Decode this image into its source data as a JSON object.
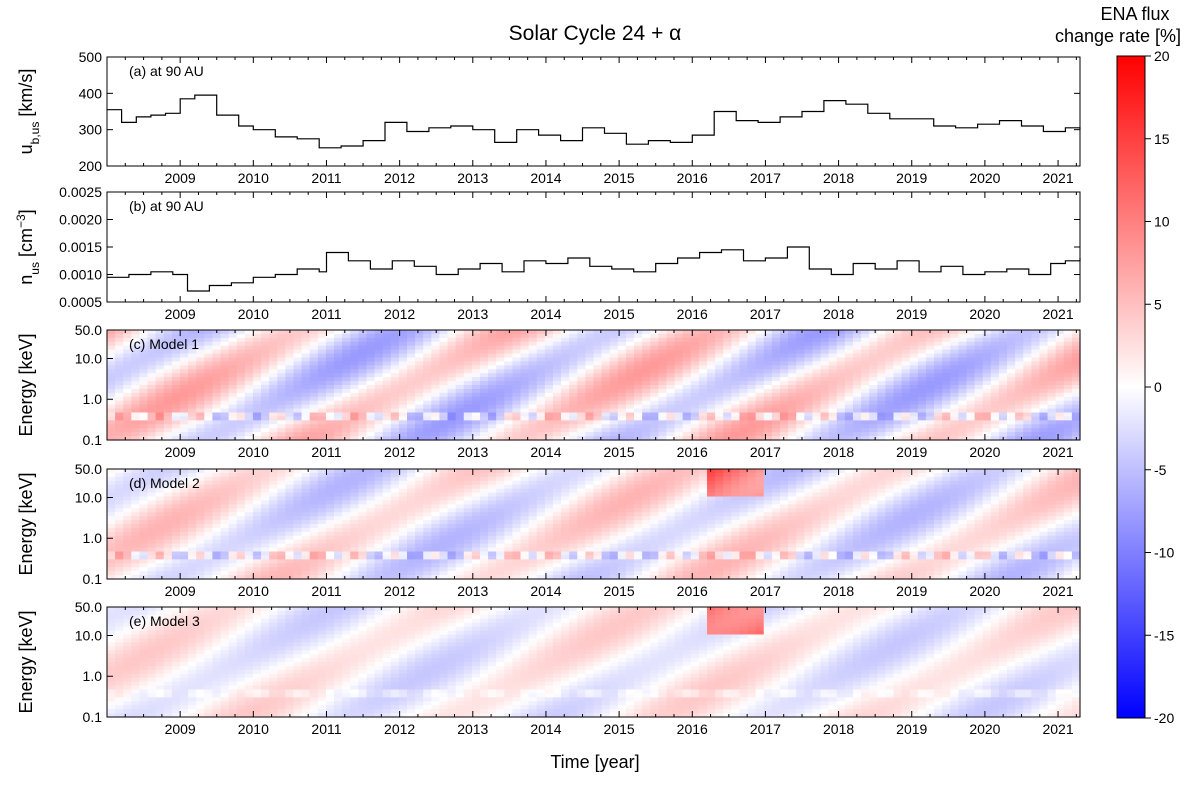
{
  "figure": {
    "title": "Solar Cycle 24 + α",
    "xlabel": "Time [year]"
  },
  "colorbar": {
    "title_line1": "ENA flux",
    "title_line2": "change rate [%]",
    "range": [
      -20,
      20
    ],
    "ticks": [
      "20",
      "15",
      "10",
      "5",
      "0",
      "-5",
      "-10",
      "-15",
      "-20"
    ],
    "colors": {
      "max": "#ff0000",
      "mid": "#ffffff",
      "min": "#0000ff"
    }
  },
  "x_ticks": [
    "2009",
    "2010",
    "2011",
    "2012",
    "2013",
    "2014",
    "2015",
    "2016",
    "2017",
    "2018",
    "2019",
    "2020",
    "2021"
  ],
  "chart_data": [
    {
      "type": "line",
      "panel_label": "(a) at 90 AU",
      "ylabel": "u_b,us [km/s]",
      "ylabel_main": "u",
      "ylabel_sub": "b,us",
      "ylabel_unit": " [km/s]",
      "xlim": [
        2008.0,
        2021.3
      ],
      "ylim": [
        200,
        500
      ],
      "yticks": [
        "500",
        "400",
        "300",
        "200"
      ],
      "x": [
        2008.0,
        2008.2,
        2008.4,
        2008.6,
        2008.8,
        2009.0,
        2009.2,
        2009.5,
        2009.8,
        2010.0,
        2010.3,
        2010.6,
        2010.9,
        2011.2,
        2011.5,
        2011.8,
        2012.1,
        2012.4,
        2012.7,
        2013.0,
        2013.3,
        2013.6,
        2013.9,
        2014.2,
        2014.5,
        2014.8,
        2015.1,
        2015.4,
        2015.7,
        2016.0,
        2016.3,
        2016.6,
        2016.9,
        2017.2,
        2017.5,
        2017.8,
        2018.1,
        2018.4,
        2018.7,
        2019.0,
        2019.3,
        2019.6,
        2019.9,
        2020.2,
        2020.5,
        2020.8,
        2021.1,
        2021.3
      ],
      "y": [
        355,
        320,
        335,
        340,
        345,
        385,
        395,
        340,
        310,
        300,
        280,
        275,
        250,
        255,
        270,
        320,
        295,
        305,
        310,
        300,
        265,
        300,
        285,
        270,
        305,
        290,
        260,
        270,
        265,
        285,
        350,
        325,
        320,
        335,
        350,
        380,
        370,
        345,
        330,
        330,
        310,
        305,
        315,
        325,
        310,
        295,
        305,
        300
      ]
    },
    {
      "type": "line",
      "panel_label": "(b) at 90 AU",
      "ylabel": "n_us [cm^-3]",
      "ylabel_main": "n",
      "ylabel_sub": "us",
      "ylabel_unit_pre": " [cm",
      "ylabel_unit_sup": "−3",
      "ylabel_unit_post": "]",
      "xlim": [
        2008.0,
        2021.3
      ],
      "ylim": [
        0.0005,
        0.0025
      ],
      "yticks": [
        "0.0025",
        "0.0020",
        "0.0015",
        "0.0010",
        "0.0005"
      ],
      "x": [
        2008.0,
        2008.3,
        2008.6,
        2008.9,
        2009.1,
        2009.4,
        2009.7,
        2010.0,
        2010.3,
        2010.6,
        2010.9,
        2011.0,
        2011.3,
        2011.6,
        2011.9,
        2012.2,
        2012.5,
        2012.8,
        2013.1,
        2013.4,
        2013.7,
        2014.0,
        2014.3,
        2014.6,
        2014.9,
        2015.2,
        2015.5,
        2015.8,
        2016.1,
        2016.4,
        2016.7,
        2017.0,
        2017.3,
        2017.6,
        2017.9,
        2018.2,
        2018.5,
        2018.8,
        2019.1,
        2019.4,
        2019.7,
        2020.0,
        2020.3,
        2020.6,
        2020.9,
        2021.1,
        2021.3
      ],
      "y": [
        0.00095,
        0.001,
        0.00105,
        0.001,
        0.0007,
        0.0008,
        0.00085,
        0.00095,
        0.001,
        0.0011,
        0.00105,
        0.0014,
        0.00125,
        0.0011,
        0.00125,
        0.00115,
        0.001,
        0.0011,
        0.0012,
        0.00105,
        0.00125,
        0.0012,
        0.0013,
        0.00115,
        0.0011,
        0.00105,
        0.0012,
        0.0013,
        0.0014,
        0.00145,
        0.00125,
        0.0013,
        0.0015,
        0.0011,
        0.001,
        0.0012,
        0.0011,
        0.00125,
        0.00105,
        0.00115,
        0.001,
        0.00105,
        0.0011,
        0.001,
        0.0012,
        0.00125,
        0.0013
      ]
    },
    {
      "type": "heatmap",
      "panel_label": "(c) Model 1",
      "ylabel": "Energy [keV]",
      "xlim": [
        2008.0,
        2021.3
      ],
      "ylim": [
        0.1,
        50.0
      ],
      "yscale": "log",
      "yticks": [
        "50.0",
        "10.0",
        "1.0",
        "0.1"
      ],
      "colorbar_range": [
        -20,
        20
      ]
    },
    {
      "type": "heatmap",
      "panel_label": "(d) Model 2",
      "ylabel": "Energy [keV]",
      "xlim": [
        2008.0,
        2021.3
      ],
      "ylim": [
        0.1,
        50.0
      ],
      "yscale": "log",
      "yticks": [
        "50.0",
        "10.0",
        "1.0",
        "0.1"
      ],
      "colorbar_range": [
        -20,
        20
      ]
    },
    {
      "type": "heatmap",
      "panel_label": "(e) Model 3",
      "ylabel": "Energy [keV]",
      "xlim": [
        2008.0,
        2021.3
      ],
      "ylim": [
        0.1,
        50.0
      ],
      "yscale": "log",
      "yticks": [
        "50.0",
        "10.0",
        "1.0",
        "0.1"
      ],
      "colorbar_range": [
        -20,
        20
      ]
    }
  ]
}
